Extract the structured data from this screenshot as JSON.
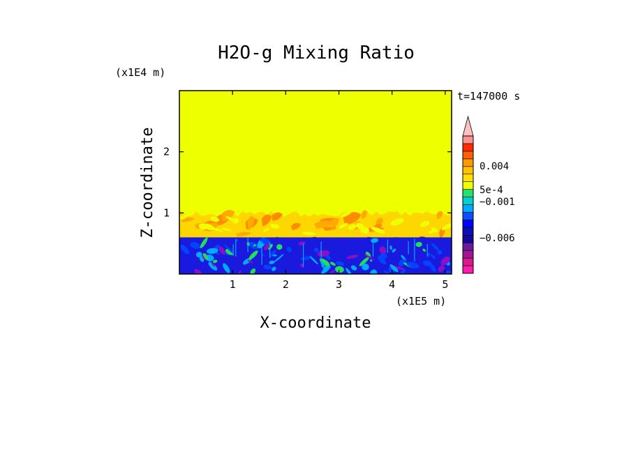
{
  "chart_data": {
    "type": "heatmap",
    "title": "H2O-g Mixing Ratio",
    "xlabel": "X-coordinate",
    "ylabel": "Z-coordinate",
    "x_scale_label": "(x1E5 m)",
    "y_scale_label": "(x1E4 m)",
    "time_label": "t=147000 s",
    "xlim": [
      0,
      5.12
    ],
    "ylim": [
      0,
      3.0
    ],
    "x_ticks": [
      1,
      2,
      3,
      4,
      5
    ],
    "y_ticks": [
      1,
      2
    ],
    "x_tick_labels": [
      "1",
      "2",
      "3",
      "4",
      "5"
    ],
    "y_tick_labels": [
      "1",
      "2"
    ],
    "regions": [
      {
        "name": "upper",
        "z_range": [
          1.05,
          3.0
        ],
        "color": "#eeff00"
      },
      {
        "name": "turbulent-mixing",
        "z_range": [
          0.6,
          1.05
        ],
        "colors": [
          "#ffd700",
          "#ffaa00",
          "#ff8c00"
        ]
      },
      {
        "name": "lower",
        "z_range": [
          0.0,
          0.6
        ],
        "colors": [
          "#1a1adf",
          "#0044ff",
          "#00aaff",
          "#22dd55",
          "#8a10c8"
        ]
      }
    ],
    "colorbar": {
      "levels": [
        "#ff1aa8",
        "#d81b8a",
        "#a01590",
        "#6a1a9a",
        "#12089e",
        "#0810b5",
        "#0000ff",
        "#0a50ff",
        "#00aaff",
        "#00d0d0",
        "#28e070",
        "#eeff00",
        "#ffe000",
        "#ffc200",
        "#ff9a00",
        "#ff6000",
        "#ff2a00",
        "#ff9090",
        "#ffc0c0"
      ],
      "labels": [
        {
          "text": "0.004",
          "value": 0.004
        },
        {
          "text": "5e-4",
          "value": 0.0005
        },
        {
          "text": "−0.001",
          "value": -0.001
        },
        {
          "text": "−0.006",
          "value": -0.006
        }
      ]
    }
  }
}
